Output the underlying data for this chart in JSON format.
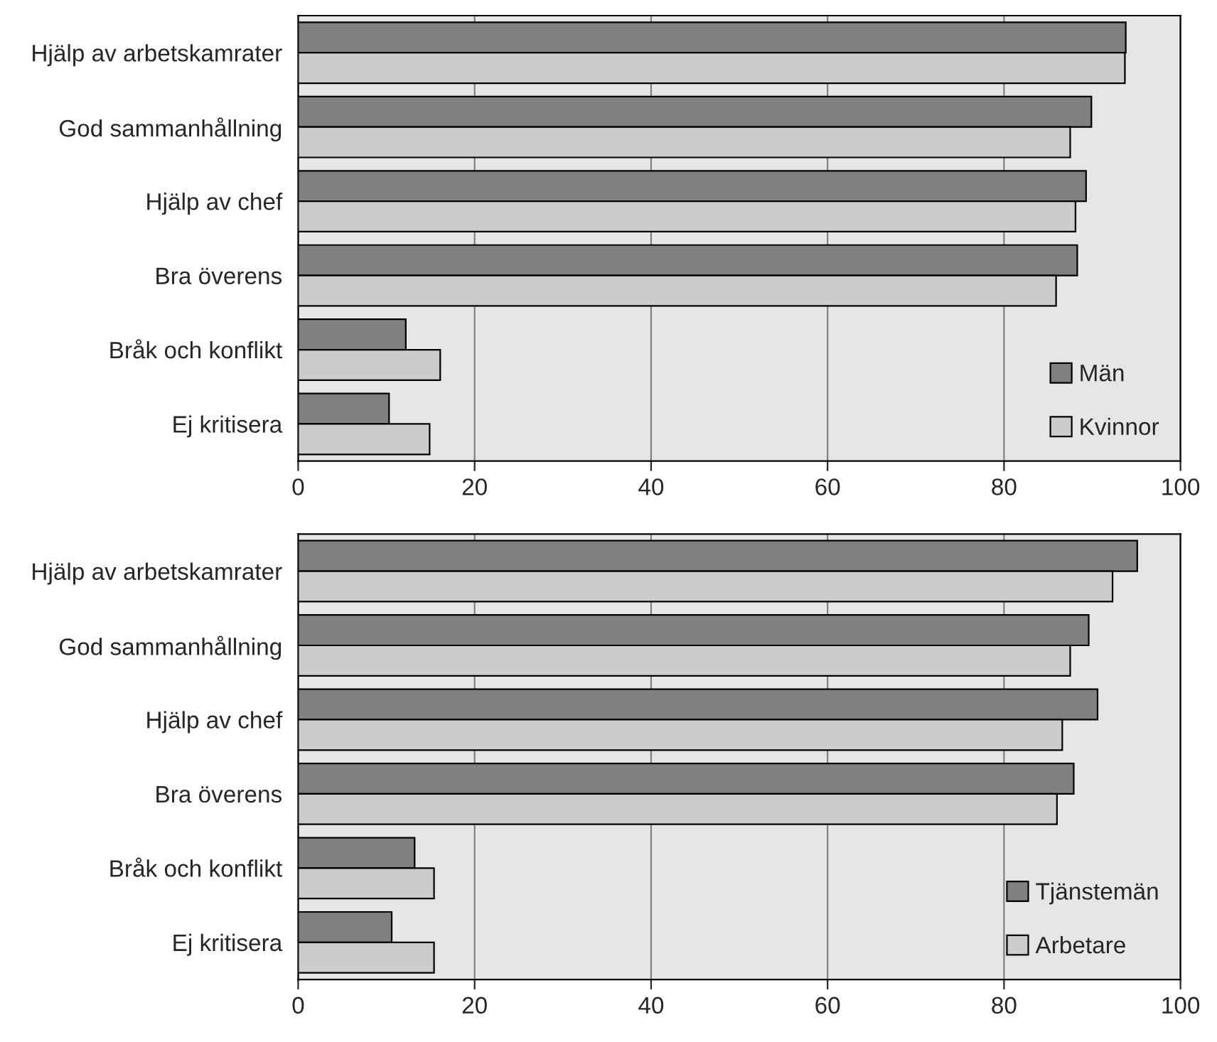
{
  "chart_data": [
    {
      "type": "bar",
      "orientation": "horizontal",
      "categories": [
        "Hjälp av arbetskamrater",
        "God sammanhållning",
        "Hjälp av chef",
        "Bra överens",
        "Bråk och konflikt",
        "Ej kritisera"
      ],
      "series": [
        {
          "name": "Män",
          "color": "#808080",
          "values": [
            93.8,
            89.9,
            89.3,
            88.3,
            12.2,
            10.3
          ]
        },
        {
          "name": "Kvinnor",
          "color": "#cccccc",
          "values": [
            93.7,
            87.5,
            88.1,
            85.9,
            16.1,
            14.9
          ]
        }
      ],
      "xlim": [
        0,
        100
      ],
      "xticks": [
        0,
        20,
        40,
        60,
        80,
        100
      ],
      "grid": "x",
      "legend": "bottom right"
    },
    {
      "type": "bar",
      "orientation": "horizontal",
      "categories": [
        "Hjälp av arbetskamrater",
        "God sammanhållning",
        "Hjälp av chef",
        "Bra överens",
        "Bråk och konflikt",
        "Ej kritisera"
      ],
      "series": [
        {
          "name": "Tjänstemän",
          "color": "#808080",
          "values": [
            95.1,
            89.6,
            90.6,
            87.9,
            13.2,
            10.6
          ]
        },
        {
          "name": "Arbetare",
          "color": "#cccccc",
          "values": [
            92.3,
            87.5,
            86.6,
            86.0,
            15.4,
            15.4
          ]
        }
      ],
      "xlim": [
        0,
        100
      ],
      "xticks": [
        0,
        20,
        40,
        60,
        80,
        100
      ],
      "grid": "x",
      "legend": "bottom right"
    }
  ]
}
